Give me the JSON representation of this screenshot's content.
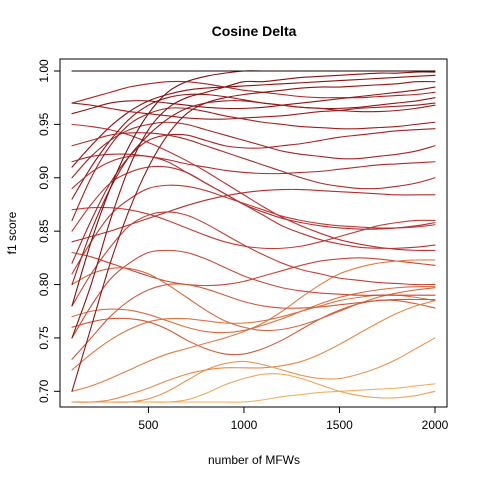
{
  "chart_data": {
    "type": "line",
    "title": "Cosine Delta",
    "xlabel": "number of MFWs",
    "ylabel": "f1 score",
    "xlim": [
      100,
      2000
    ],
    "ylim": [
      0.69,
      1.0
    ],
    "x_ticks": [
      500,
      1000,
      1500,
      2000
    ],
    "y_ticks": [
      0.7,
      0.75,
      0.8,
      0.85,
      0.9,
      0.95,
      1.0
    ],
    "x": [
      100,
      200,
      300,
      400,
      500,
      600,
      700,
      800,
      900,
      1000,
      1100,
      1200,
      1300,
      1400,
      1500,
      1600,
      1700,
      1800,
      1900,
      2000
    ],
    "series": [
      {
        "color": "#1a0000",
        "values": [
          1.0,
          1.0,
          1.0,
          1.0,
          1.0,
          1.0,
          1.0,
          1.0,
          1.0,
          1.0,
          1.0,
          1.0,
          1.0,
          1.0,
          1.0,
          1.0,
          1.0,
          1.0,
          1.0,
          1.0
        ]
      },
      {
        "color": "#7a0f0f",
        "values": [
          0.78,
          0.84,
          0.89,
          0.93,
          0.96,
          0.98,
          0.99,
          0.995,
          0.998,
          1.0,
          1.0,
          1.0,
          1.0,
          1.0,
          1.0,
          1.0,
          1.0,
          1.0,
          1.0,
          1.0
        ]
      },
      {
        "color": "#8b1010",
        "values": [
          0.75,
          0.8,
          0.86,
          0.91,
          0.945,
          0.965,
          0.975,
          0.98,
          0.985,
          0.99,
          0.99,
          0.992,
          0.994,
          0.995,
          0.996,
          0.997,
          0.998,
          0.998,
          0.999,
          0.999
        ]
      },
      {
        "color": "#911515",
        "values": [
          0.7,
          0.76,
          0.82,
          0.87,
          0.91,
          0.94,
          0.96,
          0.97,
          0.975,
          0.978,
          0.98,
          0.982,
          0.984,
          0.985,
          0.985,
          0.986,
          0.987,
          0.988,
          0.99,
          0.99
        ]
      },
      {
        "color": "#9b1b1b",
        "values": [
          0.8,
          0.85,
          0.89,
          0.92,
          0.94,
          0.955,
          0.965,
          0.97,
          0.972,
          0.972,
          0.97,
          0.968,
          0.966,
          0.965,
          0.963,
          0.962,
          0.962,
          0.963,
          0.965,
          0.968
        ]
      },
      {
        "color": "#a01f1f",
        "values": [
          0.86,
          0.9,
          0.93,
          0.95,
          0.96,
          0.965,
          0.965,
          0.962,
          0.958,
          0.955,
          0.952,
          0.95,
          0.948,
          0.947,
          0.946,
          0.946,
          0.947,
          0.948,
          0.95,
          0.952
        ]
      },
      {
        "color": "#a52525",
        "values": [
          0.9,
          0.92,
          0.935,
          0.945,
          0.95,
          0.952,
          0.95,
          0.945,
          0.94,
          0.935,
          0.93,
          0.925,
          0.922,
          0.92,
          0.918,
          0.918,
          0.92,
          0.922,
          0.925,
          0.93
        ]
      },
      {
        "color": "#8f1212",
        "values": [
          0.96,
          0.965,
          0.97,
          0.972,
          0.972,
          0.97,
          0.968,
          0.966,
          0.965,
          0.965,
          0.966,
          0.968,
          0.97,
          0.972,
          0.974,
          0.976,
          0.978,
          0.98,
          0.982,
          0.985
        ]
      },
      {
        "color": "#9e1c1c",
        "values": [
          0.97,
          0.968,
          0.965,
          0.962,
          0.96,
          0.958,
          0.956,
          0.955,
          0.955,
          0.956,
          0.957,
          0.958,
          0.96,
          0.962,
          0.963,
          0.965,
          0.966,
          0.967,
          0.968,
          0.97
        ]
      },
      {
        "color": "#ab2a2a",
        "values": [
          0.93,
          0.935,
          0.94,
          0.942,
          0.942,
          0.94,
          0.936,
          0.93,
          0.924,
          0.918,
          0.912,
          0.906,
          0.9,
          0.895,
          0.892,
          0.89,
          0.89,
          0.892,
          0.895,
          0.9
        ]
      },
      {
        "color": "#b33030",
        "values": [
          0.89,
          0.905,
          0.915,
          0.92,
          0.92,
          0.915,
          0.905,
          0.895,
          0.885,
          0.875,
          0.868,
          0.862,
          0.858,
          0.855,
          0.853,
          0.852,
          0.852,
          0.853,
          0.855,
          0.858
        ]
      },
      {
        "color": "#b83434",
        "values": [
          0.85,
          0.875,
          0.895,
          0.905,
          0.91,
          0.91,
          0.905,
          0.895,
          0.885,
          0.875,
          0.865,
          0.855,
          0.848,
          0.842,
          0.838,
          0.835,
          0.834,
          0.834,
          0.835,
          0.837
        ]
      },
      {
        "color": "#bd3a36",
        "values": [
          0.81,
          0.84,
          0.865,
          0.88,
          0.89,
          0.893,
          0.892,
          0.888,
          0.882,
          0.876,
          0.87,
          0.864,
          0.86,
          0.857,
          0.855,
          0.854,
          0.853,
          0.853,
          0.854,
          0.856
        ]
      },
      {
        "color": "#c24036",
        "values": [
          0.78,
          0.81,
          0.835,
          0.855,
          0.865,
          0.868,
          0.865,
          0.857,
          0.847,
          0.837,
          0.828,
          0.82,
          0.814,
          0.81,
          0.806,
          0.804,
          0.802,
          0.801,
          0.8,
          0.8
        ]
      },
      {
        "color": "#c84a38",
        "values": [
          0.75,
          0.78,
          0.805,
          0.82,
          0.83,
          0.832,
          0.83,
          0.824,
          0.816,
          0.808,
          0.802,
          0.797,
          0.794,
          0.792,
          0.791,
          0.79,
          0.79,
          0.79,
          0.79,
          0.79
        ]
      },
      {
        "color": "#a62222",
        "values": [
          0.82,
          0.86,
          0.895,
          0.92,
          0.935,
          0.94,
          0.94,
          0.935,
          0.93,
          0.928,
          0.928,
          0.93,
          0.932,
          0.935,
          0.938,
          0.94,
          0.942,
          0.944,
          0.945,
          0.946
        ]
      },
      {
        "color": "#931616",
        "values": [
          0.88,
          0.91,
          0.935,
          0.955,
          0.968,
          0.975,
          0.978,
          0.978,
          0.976,
          0.973,
          0.97,
          0.968,
          0.966,
          0.965,
          0.965,
          0.966,
          0.968,
          0.97,
          0.972,
          0.975
        ]
      },
      {
        "color": "#ad2c2c",
        "values": [
          0.915,
          0.92,
          0.922,
          0.922,
          0.92,
          0.917,
          0.913,
          0.91,
          0.907,
          0.905,
          0.904,
          0.904,
          0.905,
          0.906,
          0.908,
          0.91,
          0.912,
          0.913,
          0.914,
          0.915
        ]
      },
      {
        "color": "#b63232",
        "values": [
          0.95,
          0.948,
          0.945,
          0.94,
          0.933,
          0.925,
          0.916,
          0.906,
          0.895,
          0.884,
          0.873,
          0.863,
          0.855,
          0.848,
          0.842,
          0.838,
          0.835,
          0.833,
          0.832,
          0.832
        ]
      },
      {
        "color": "#cf5a3a",
        "values": [
          0.73,
          0.75,
          0.77,
          0.785,
          0.795,
          0.8,
          0.8,
          0.796,
          0.79,
          0.784,
          0.78,
          0.778,
          0.778,
          0.779,
          0.781,
          0.783,
          0.785,
          0.786,
          0.786,
          0.786
        ]
      },
      {
        "color": "#d4663c",
        "values": [
          0.8,
          0.81,
          0.815,
          0.815,
          0.81,
          0.8,
          0.788,
          0.776,
          0.766,
          0.76,
          0.757,
          0.758,
          0.762,
          0.768,
          0.775,
          0.782,
          0.788,
          0.792,
          0.795,
          0.797
        ]
      },
      {
        "color": "#d86e3e",
        "values": [
          0.77,
          0.775,
          0.777,
          0.776,
          0.772,
          0.766,
          0.76,
          0.756,
          0.755,
          0.757,
          0.762,
          0.768,
          0.775,
          0.782,
          0.788,
          0.792,
          0.795,
          0.797,
          0.798,
          0.798
        ]
      },
      {
        "color": "#dc7640",
        "values": [
          0.72,
          0.735,
          0.748,
          0.758,
          0.765,
          0.768,
          0.768,
          0.766,
          0.764,
          0.764,
          0.766,
          0.77,
          0.775,
          0.78,
          0.785,
          0.788,
          0.79,
          0.79,
          0.788,
          0.785
        ]
      },
      {
        "color": "#e07e44",
        "values": [
          0.7,
          0.705,
          0.712,
          0.72,
          0.728,
          0.735,
          0.74,
          0.745,
          0.75,
          0.756,
          0.764,
          0.775,
          0.788,
          0.8,
          0.81,
          0.816,
          0.82,
          0.822,
          0.823,
          0.823
        ]
      },
      {
        "color": "#e48a48",
        "values": [
          0.69,
          0.69,
          0.692,
          0.697,
          0.703,
          0.71,
          0.716,
          0.72,
          0.722,
          0.722,
          0.722,
          0.724,
          0.728,
          0.735,
          0.744,
          0.754,
          0.764,
          0.773,
          0.78,
          0.785
        ]
      },
      {
        "color": "#e8964e",
        "values": [
          0.69,
          0.69,
          0.69,
          0.69,
          0.693,
          0.7,
          0.71,
          0.72,
          0.726,
          0.728,
          0.725,
          0.72,
          0.715,
          0.712,
          0.712,
          0.716,
          0.722,
          0.73,
          0.74,
          0.75
        ]
      },
      {
        "color": "#eda456",
        "values": [
          0.69,
          0.69,
          0.69,
          0.69,
          0.69,
          0.69,
          0.692,
          0.698,
          0.706,
          0.712,
          0.716,
          0.716,
          0.712,
          0.706,
          0.7,
          0.696,
          0.694,
          0.694,
          0.696,
          0.7
        ]
      },
      {
        "color": "#f1b25e",
        "values": [
          0.69,
          0.69,
          0.69,
          0.69,
          0.69,
          0.69,
          0.69,
          0.69,
          0.69,
          0.69,
          0.692,
          0.695,
          0.697,
          0.699,
          0.7,
          0.701,
          0.702,
          0.703,
          0.705,
          0.707
        ]
      },
      {
        "color": "#cf5a3a",
        "values": [
          0.76,
          0.765,
          0.768,
          0.768,
          0.765,
          0.758,
          0.748,
          0.74,
          0.735,
          0.735,
          0.74,
          0.748,
          0.758,
          0.768,
          0.776,
          0.782,
          0.785,
          0.785,
          0.782,
          0.778
        ]
      },
      {
        "color": "#a92626",
        "values": [
          0.97,
          0.975,
          0.98,
          0.985,
          0.988,
          0.99,
          0.99,
          0.988,
          0.985,
          0.982,
          0.98,
          0.978,
          0.976,
          0.975,
          0.975,
          0.975,
          0.976,
          0.977,
          0.978,
          0.98
        ]
      },
      {
        "color": "#b02e2e",
        "values": [
          0.84,
          0.845,
          0.85,
          0.856,
          0.862,
          0.868,
          0.874,
          0.879,
          0.883,
          0.886,
          0.888,
          0.889,
          0.889,
          0.888,
          0.887,
          0.886,
          0.885,
          0.884,
          0.884,
          0.884
        ]
      },
      {
        "color": "#8c1111",
        "values": [
          0.91,
          0.93,
          0.948,
          0.962,
          0.972,
          0.978,
          0.982,
          0.984,
          0.985,
          0.986,
          0.987,
          0.988,
          0.989,
          0.99,
          0.991,
          0.992,
          0.993,
          0.994,
          0.995,
          0.996
        ]
      },
      {
        "color": "#c03c36",
        "values": [
          0.87,
          0.872,
          0.872,
          0.87,
          0.866,
          0.86,
          0.853,
          0.846,
          0.84,
          0.836,
          0.834,
          0.834,
          0.836,
          0.84,
          0.845,
          0.85,
          0.855,
          0.858,
          0.86,
          0.86
        ]
      },
      {
        "color": "#c64638",
        "values": [
          0.83,
          0.826,
          0.82,
          0.814,
          0.808,
          0.803,
          0.8,
          0.799,
          0.8,
          0.803,
          0.808,
          0.813,
          0.818,
          0.822,
          0.824,
          0.825,
          0.824,
          0.822,
          0.82,
          0.818
        ]
      }
    ]
  }
}
